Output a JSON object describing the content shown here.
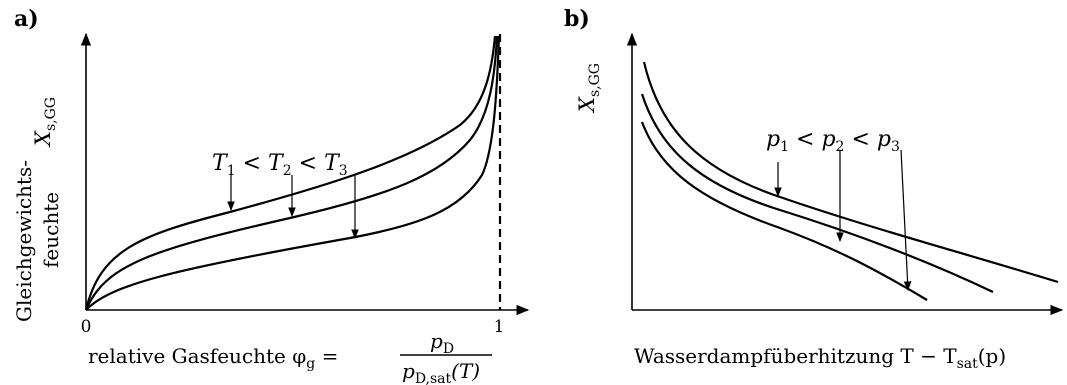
{
  "panel_a": {
    "label": "a)",
    "y_label_top": "X",
    "y_label_top_sub": "s,GG",
    "y_label_line1": "Gleichgewichts-",
    "y_label_line2": "feuchte",
    "x_tick_0": "0",
    "x_tick_1": "1",
    "x_label": "relative Gasfeuchte φ",
    "x_label_sub": "g",
    "x_label_eq": " = ",
    "frac_num": "p",
    "frac_num_sub": "D",
    "frac_den": "p",
    "frac_den_sub": "D,sat",
    "frac_den_tail": "(T)",
    "annotation": {
      "t1": "T",
      "t1_sub": "1",
      "lt1": " < ",
      "t2": "T",
      "t2_sub": "2",
      "lt2": " < ",
      "t3": "T",
      "t3_sub": "3"
    }
  },
  "panel_b": {
    "label": "b)",
    "y_label": "X",
    "y_label_sub": "s,GG",
    "x_label": "Wasserdampfüberhitzung T − T",
    "x_label_sub": "sat",
    "x_label_tail": "(p)",
    "annotation": {
      "p1": "p",
      "p1_sub": "1",
      "lt1": " < ",
      "p2": "p",
      "p2_sub": "2",
      "lt2": " < ",
      "p3": "p",
      "p3_sub": "3"
    }
  }
}
